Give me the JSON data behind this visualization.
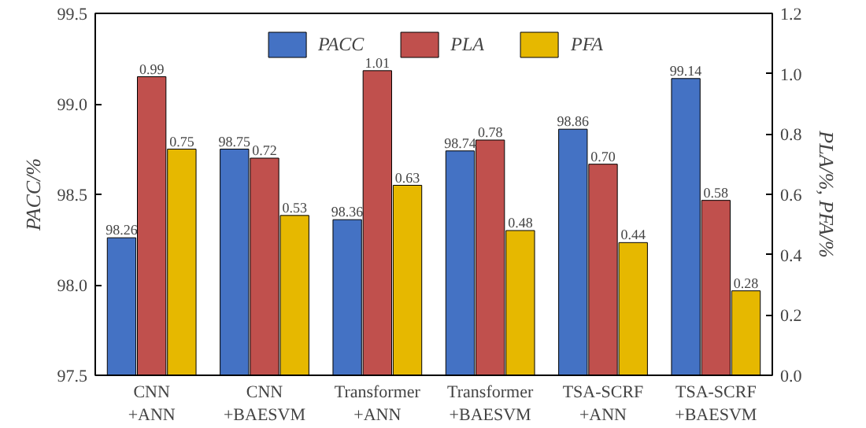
{
  "chart_data": {
    "type": "bar",
    "categories": [
      "CNN\n+ANN",
      "CNN\n+BAESVM",
      "Transformer\n+ANN",
      "Transformer\n+BAESVM",
      "TSA-SCRF\n+ANN",
      "TSA-SCRF\n+BAESVM"
    ],
    "ylabel": "PACC/%",
    "y2label": "PLA/%, PFA/%",
    "ylim": [
      97.5,
      99.5
    ],
    "yticks": [
      {
        "value": 97.5,
        "label": "97.5"
      },
      {
        "value": 98.0,
        "label": "98.0"
      },
      {
        "value": 98.5,
        "label": "98.5"
      },
      {
        "value": 99.0,
        "label": "99.0"
      },
      {
        "value": 99.5,
        "label": "99.5"
      }
    ],
    "y2lim": [
      0,
      1.2
    ],
    "y2ticks": [
      {
        "value": 0,
        "label": "0.0"
      },
      {
        "value": 0.2,
        "label": "0.2"
      },
      {
        "value": 0.4,
        "label": "0.4"
      },
      {
        "value": 0.6,
        "label": "0.6"
      },
      {
        "value": 0.8,
        "label": "0.8"
      },
      {
        "value": 1.0,
        "label": "1.0"
      },
      {
        "value": 1.2,
        "label": "1.2"
      }
    ],
    "legend": "top",
    "grid": false,
    "series": [
      {
        "name": "PACC",
        "color": "#4472c4",
        "values": [
          98.26,
          98.75,
          98.36,
          98.74,
          98.86,
          99.14
        ],
        "value_labels": [
          "98.26",
          "98.75",
          "98.36",
          "98.74",
          "98.86",
          "99.14"
        ]
      },
      {
        "name": "PLA",
        "color": "#c0504d",
        "axis": "y2",
        "values": [
          0.99,
          0.72,
          1.01,
          0.78,
          0.7,
          0.58
        ],
        "value_labels": [
          "0.99",
          "0.72",
          "1.01",
          "0.78",
          "0.70",
          "0.58"
        ]
      },
      {
        "name": "PFA",
        "color": "#e6b800",
        "axis": "y2",
        "values": [
          0.75,
          0.53,
          0.63,
          0.48,
          0.44,
          0.28
        ],
        "value_labels": [
          "0.75",
          "0.53",
          "0.63",
          "0.48",
          "0.44",
          "0.28"
        ]
      }
    ]
  }
}
